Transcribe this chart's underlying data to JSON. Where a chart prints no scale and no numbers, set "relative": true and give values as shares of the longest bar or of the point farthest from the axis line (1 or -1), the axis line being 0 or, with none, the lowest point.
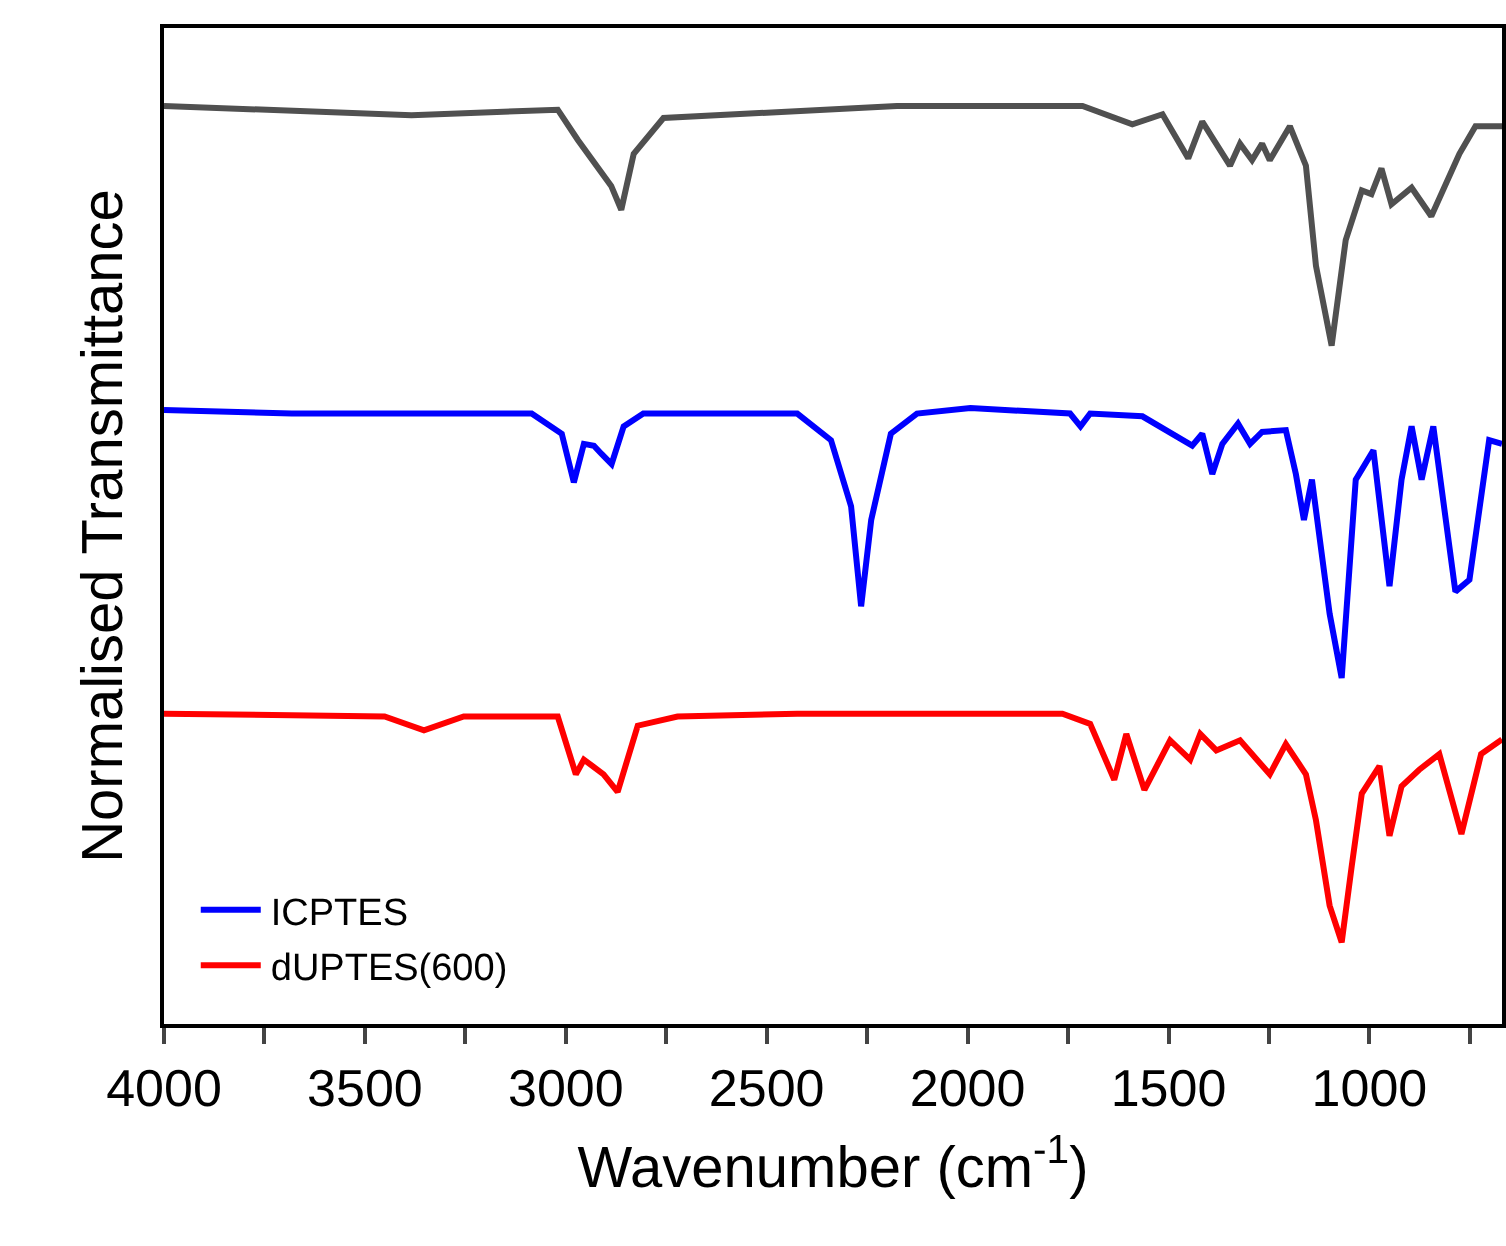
{
  "chart_data": {
    "type": "line",
    "relative": true,
    "xlabel": "Wavenumber (cm$^{-1}$)",
    "ylabel": "Normalised Transmittance",
    "xlim": [
      4000,
      670
    ],
    "xticks": [
      4000,
      {
        "value": 3750,
        "label": null
      },
      3500,
      {
        "value": 3250,
        "label": null
      },
      3000,
      {
        "value": 2750,
        "label": null
      },
      2500,
      {
        "value": 2250,
        "label": null
      },
      2000,
      {
        "value": 1750,
        "label": null
      },
      1500,
      {
        "value": 1250,
        "label": null
      },
      1000,
      {
        "value": 750,
        "label": null
      }
    ],
    "legend": "bottom left",
    "tick_labels": "x",
    "line_style": "solid",
    "marker": "none",
    "series": [
      {
        "color": "#505050",
        "x": [
          4000,
          3384,
          3020,
          2970,
          2887,
          2862,
          2831,
          2757,
          2176,
          1714,
          1590,
          1515,
          1451,
          1416,
          1347,
          1322,
          1292,
          1267,
          1248,
          1198,
          1158,
          1133,
          1094,
          1059,
          1019,
          995,
          970,
          945,
          895,
          846,
          776,
          736,
          670
        ],
        "values": [
          1.0,
          0.99,
          0.996,
          0.963,
          0.913,
          0.887,
          0.948,
          0.987,
          1.0,
          1.0,
          0.98,
          0.991,
          0.943,
          0.983,
          0.935,
          0.959,
          0.941,
          0.959,
          0.941,
          0.978,
          0.935,
          0.826,
          0.739,
          0.854,
          0.908,
          0.904,
          0.932,
          0.893,
          0.911,
          0.88,
          0.948,
          0.978,
          0.978
        ]
      },
      {
        "name": "ICPTES",
        "color": "#0000ff",
        "x": [
          4000,
          3682,
          3085,
          3010,
          2980,
          2955,
          2930,
          2911,
          2886,
          2856,
          2807,
          2424,
          2340,
          2290,
          2265,
          2240,
          2191,
          2126,
          1993,
          1745,
          1719,
          1695,
          1565,
          1441,
          1416,
          1391,
          1366,
          1327,
          1297,
          1267,
          1208,
          1183,
          1163,
          1143,
          1099,
          1069,
          1034,
          990,
          950,
          920,
          895,
          870,
          841,
          786,
          751,
          702,
          670
        ],
        "values": [
          0.669,
          0.665,
          0.665,
          0.643,
          0.59,
          0.632,
          0.63,
          0.621,
          0.61,
          0.651,
          0.665,
          0.665,
          0.636,
          0.564,
          0.455,
          0.549,
          0.643,
          0.665,
          0.671,
          0.665,
          0.651,
          0.665,
          0.662,
          0.63,
          0.643,
          0.599,
          0.632,
          0.654,
          0.632,
          0.645,
          0.647,
          0.599,
          0.549,
          0.593,
          0.447,
          0.377,
          0.593,
          0.625,
          0.477,
          0.593,
          0.651,
          0.593,
          0.651,
          0.471,
          0.484,
          0.636,
          0.632
        ]
      },
      {
        "name": "dUPTES(600)",
        "color": "#ff0000",
        "x": [
          4000,
          3451,
          3353,
          3254,
          3020,
          2975,
          2955,
          2906,
          2871,
          2821,
          2722,
          2424,
          1764,
          1695,
          1635,
          1605,
          1560,
          1496,
          1446,
          1421,
          1381,
          1322,
          1248,
          1208,
          1158,
          1133,
          1099,
          1069,
          1044,
          1019,
          975,
          950,
          920,
          876,
          826,
          771,
          722,
          670
        ],
        "values": [
          0.338,
          0.335,
          0.32,
          0.335,
          0.335,
          0.272,
          0.288,
          0.272,
          0.253,
          0.325,
          0.335,
          0.338,
          0.338,
          0.327,
          0.266,
          0.316,
          0.255,
          0.309,
          0.288,
          0.316,
          0.298,
          0.309,
          0.272,
          0.305,
          0.272,
          0.222,
          0.129,
          0.089,
          0.172,
          0.251,
          0.281,
          0.205,
          0.259,
          0.277,
          0.294,
          0.207,
          0.294,
          0.31
        ]
      }
    ]
  }
}
